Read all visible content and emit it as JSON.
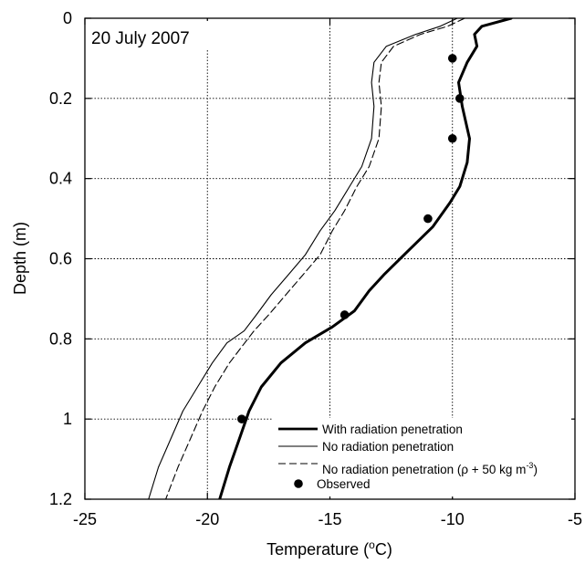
{
  "chart_data": {
    "type": "line",
    "annotation": "20 July 2007",
    "xlabel": "Temperature (",
    "xlabel_sup": "o",
    "xlabel_end": "C)",
    "ylabel": "Depth (m)",
    "xlim": [
      -25,
      -5
    ],
    "ylim": [
      0,
      1.2
    ],
    "y_inverted": true,
    "x_ticks": [
      -25,
      -20,
      -15,
      -10,
      -5
    ],
    "y_ticks": [
      0,
      0.2,
      0.4,
      0.6,
      0.8,
      1,
      1.2
    ],
    "x_tick_labels": [
      "-25",
      "-20",
      "-15",
      "-10",
      "-5"
    ],
    "y_tick_labels": [
      "0",
      "0.2",
      "0.4",
      "0.6",
      "0.8",
      "1",
      "1.2"
    ],
    "grid": true,
    "legend_position": "bottom-right",
    "legend": {
      "with_radiation": "With radiation penetration",
      "no_radiation": "No radiation penetration",
      "no_radiation_rho_prefix": "No radiation penetration (ρ + 50 kg m",
      "no_radiation_rho_sup": "-3",
      "no_radiation_rho_suffix": ")",
      "observed": "Observed"
    },
    "series": [
      {
        "name": "With radiation penetration",
        "style": "thick-solid",
        "points": [
          [
            -7.6,
            0.0
          ],
          [
            -8.8,
            0.02
          ],
          [
            -9.1,
            0.04
          ],
          [
            -9.0,
            0.07
          ],
          [
            -9.4,
            0.11
          ],
          [
            -9.75,
            0.16
          ],
          [
            -9.6,
            0.22
          ],
          [
            -9.3,
            0.3
          ],
          [
            -9.4,
            0.36
          ],
          [
            -9.7,
            0.42
          ],
          [
            -10.1,
            0.46
          ],
          [
            -10.8,
            0.52
          ],
          [
            -11.8,
            0.58
          ],
          [
            -12.8,
            0.64
          ],
          [
            -13.4,
            0.68
          ],
          [
            -14.0,
            0.73
          ],
          [
            -14.9,
            0.77
          ],
          [
            -16.0,
            0.81
          ],
          [
            -17.0,
            0.86
          ],
          [
            -17.8,
            0.92
          ],
          [
            -18.3,
            0.98
          ],
          [
            -18.7,
            1.05
          ],
          [
            -19.1,
            1.12
          ],
          [
            -19.5,
            1.2
          ]
        ]
      },
      {
        "name": "No radiation penetration",
        "style": "thin-solid",
        "points": [
          [
            -9.8,
            0.0
          ],
          [
            -10.5,
            0.02
          ],
          [
            -11.5,
            0.04
          ],
          [
            -12.7,
            0.07
          ],
          [
            -13.2,
            0.11
          ],
          [
            -13.3,
            0.16
          ],
          [
            -13.2,
            0.22
          ],
          [
            -13.3,
            0.3
          ],
          [
            -13.7,
            0.37
          ],
          [
            -14.2,
            0.42
          ],
          [
            -14.8,
            0.48
          ],
          [
            -15.4,
            0.53
          ],
          [
            -16.0,
            0.59
          ],
          [
            -16.7,
            0.64
          ],
          [
            -17.4,
            0.69
          ],
          [
            -18.0,
            0.74
          ],
          [
            -18.5,
            0.78
          ],
          [
            -19.2,
            0.81
          ],
          [
            -19.8,
            0.86
          ],
          [
            -20.4,
            0.92
          ],
          [
            -21.0,
            0.98
          ],
          [
            -21.5,
            1.05
          ],
          [
            -22.0,
            1.12
          ],
          [
            -22.4,
            1.2
          ]
        ]
      },
      {
        "name": "No radiation penetration (ρ + 50 kg m-3)",
        "style": "dashed",
        "points": [
          [
            -9.5,
            0.0
          ],
          [
            -10.2,
            0.02
          ],
          [
            -11.3,
            0.04
          ],
          [
            -12.4,
            0.07
          ],
          [
            -12.9,
            0.11
          ],
          [
            -13.0,
            0.16
          ],
          [
            -12.9,
            0.22
          ],
          [
            -13.0,
            0.3
          ],
          [
            -13.4,
            0.37
          ],
          [
            -13.9,
            0.42
          ],
          [
            -14.4,
            0.48
          ],
          [
            -14.9,
            0.53
          ],
          [
            -15.4,
            0.59
          ],
          [
            -16.1,
            0.64
          ],
          [
            -16.8,
            0.69
          ],
          [
            -17.5,
            0.74
          ],
          [
            -18.1,
            0.78
          ],
          [
            -18.6,
            0.82
          ],
          [
            -19.1,
            0.86
          ],
          [
            -19.7,
            0.92
          ],
          [
            -20.2,
            0.98
          ],
          [
            -20.7,
            1.05
          ],
          [
            -21.2,
            1.12
          ],
          [
            -21.7,
            1.2
          ]
        ]
      },
      {
        "name": "Observed",
        "style": "markers",
        "points": [
          [
            -10.0,
            0.1
          ],
          [
            -9.7,
            0.2
          ],
          [
            -10.0,
            0.3
          ],
          [
            -11.0,
            0.5
          ],
          [
            -14.4,
            0.74
          ],
          [
            -18.6,
            1.0
          ]
        ]
      }
    ]
  }
}
